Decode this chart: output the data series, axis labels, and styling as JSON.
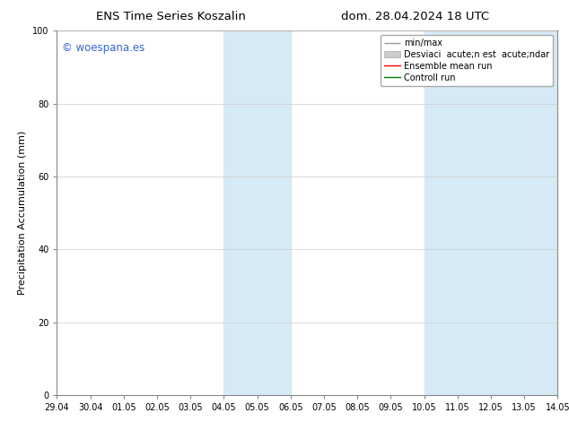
{
  "title_left": "ENS Time Series Koszalin",
  "title_right": "dom. 28.04.2024 18 UTC",
  "ylabel": "Precipitation Accumulation (mm)",
  "ylim": [
    0,
    100
  ],
  "yticks": [
    0,
    20,
    40,
    60,
    80,
    100
  ],
  "x_tick_labels": [
    "29.04",
    "30.04",
    "01.05",
    "02.05",
    "03.05",
    "04.05",
    "05.05",
    "06.05",
    "07.05",
    "08.05",
    "09.05",
    "10.05",
    "11.05",
    "12.05",
    "13.05",
    "14.05"
  ],
  "x_tick_positions": [
    0,
    1,
    2,
    3,
    4,
    5,
    6,
    7,
    8,
    9,
    10,
    11,
    12,
    13,
    14,
    15
  ],
  "shaded_regions": [
    {
      "xmin": 5,
      "xmax": 7,
      "color": "#d6eaf5"
    },
    {
      "xmin": 11,
      "xmax": 15,
      "color": "#d6eaf5"
    }
  ],
  "watermark_text": "© woespana.es",
  "watermark_color": "#3366cc",
  "background_color": "#ffffff",
  "grid_color": "#cccccc",
  "title_fontsize": 9.5,
  "tick_fontsize": 7,
  "ylabel_fontsize": 8,
  "legend_fontsize": 7,
  "legend_label_minmax": "min/max",
  "legend_label_std": "Desviaci  acute;n est  acute;ndar",
  "legend_label_ensemble": "Ensemble mean run",
  "legend_label_control": "Controll run",
  "minmax_color": "#999999",
  "std_color": "#cccccc",
  "ensemble_color": "red",
  "control_color": "green"
}
